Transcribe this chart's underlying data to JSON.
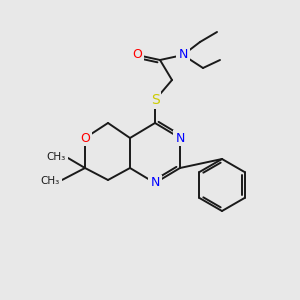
{
  "background_color": "#e8e8e8",
  "bond_color": "#1a1a1a",
  "atom_colors": {
    "N": "#0000ff",
    "O": "#ff0000",
    "S": "#cccc00",
    "C": "#1a1a1a"
  },
  "figsize": [
    3.0,
    3.0
  ],
  "dpi": 100
}
